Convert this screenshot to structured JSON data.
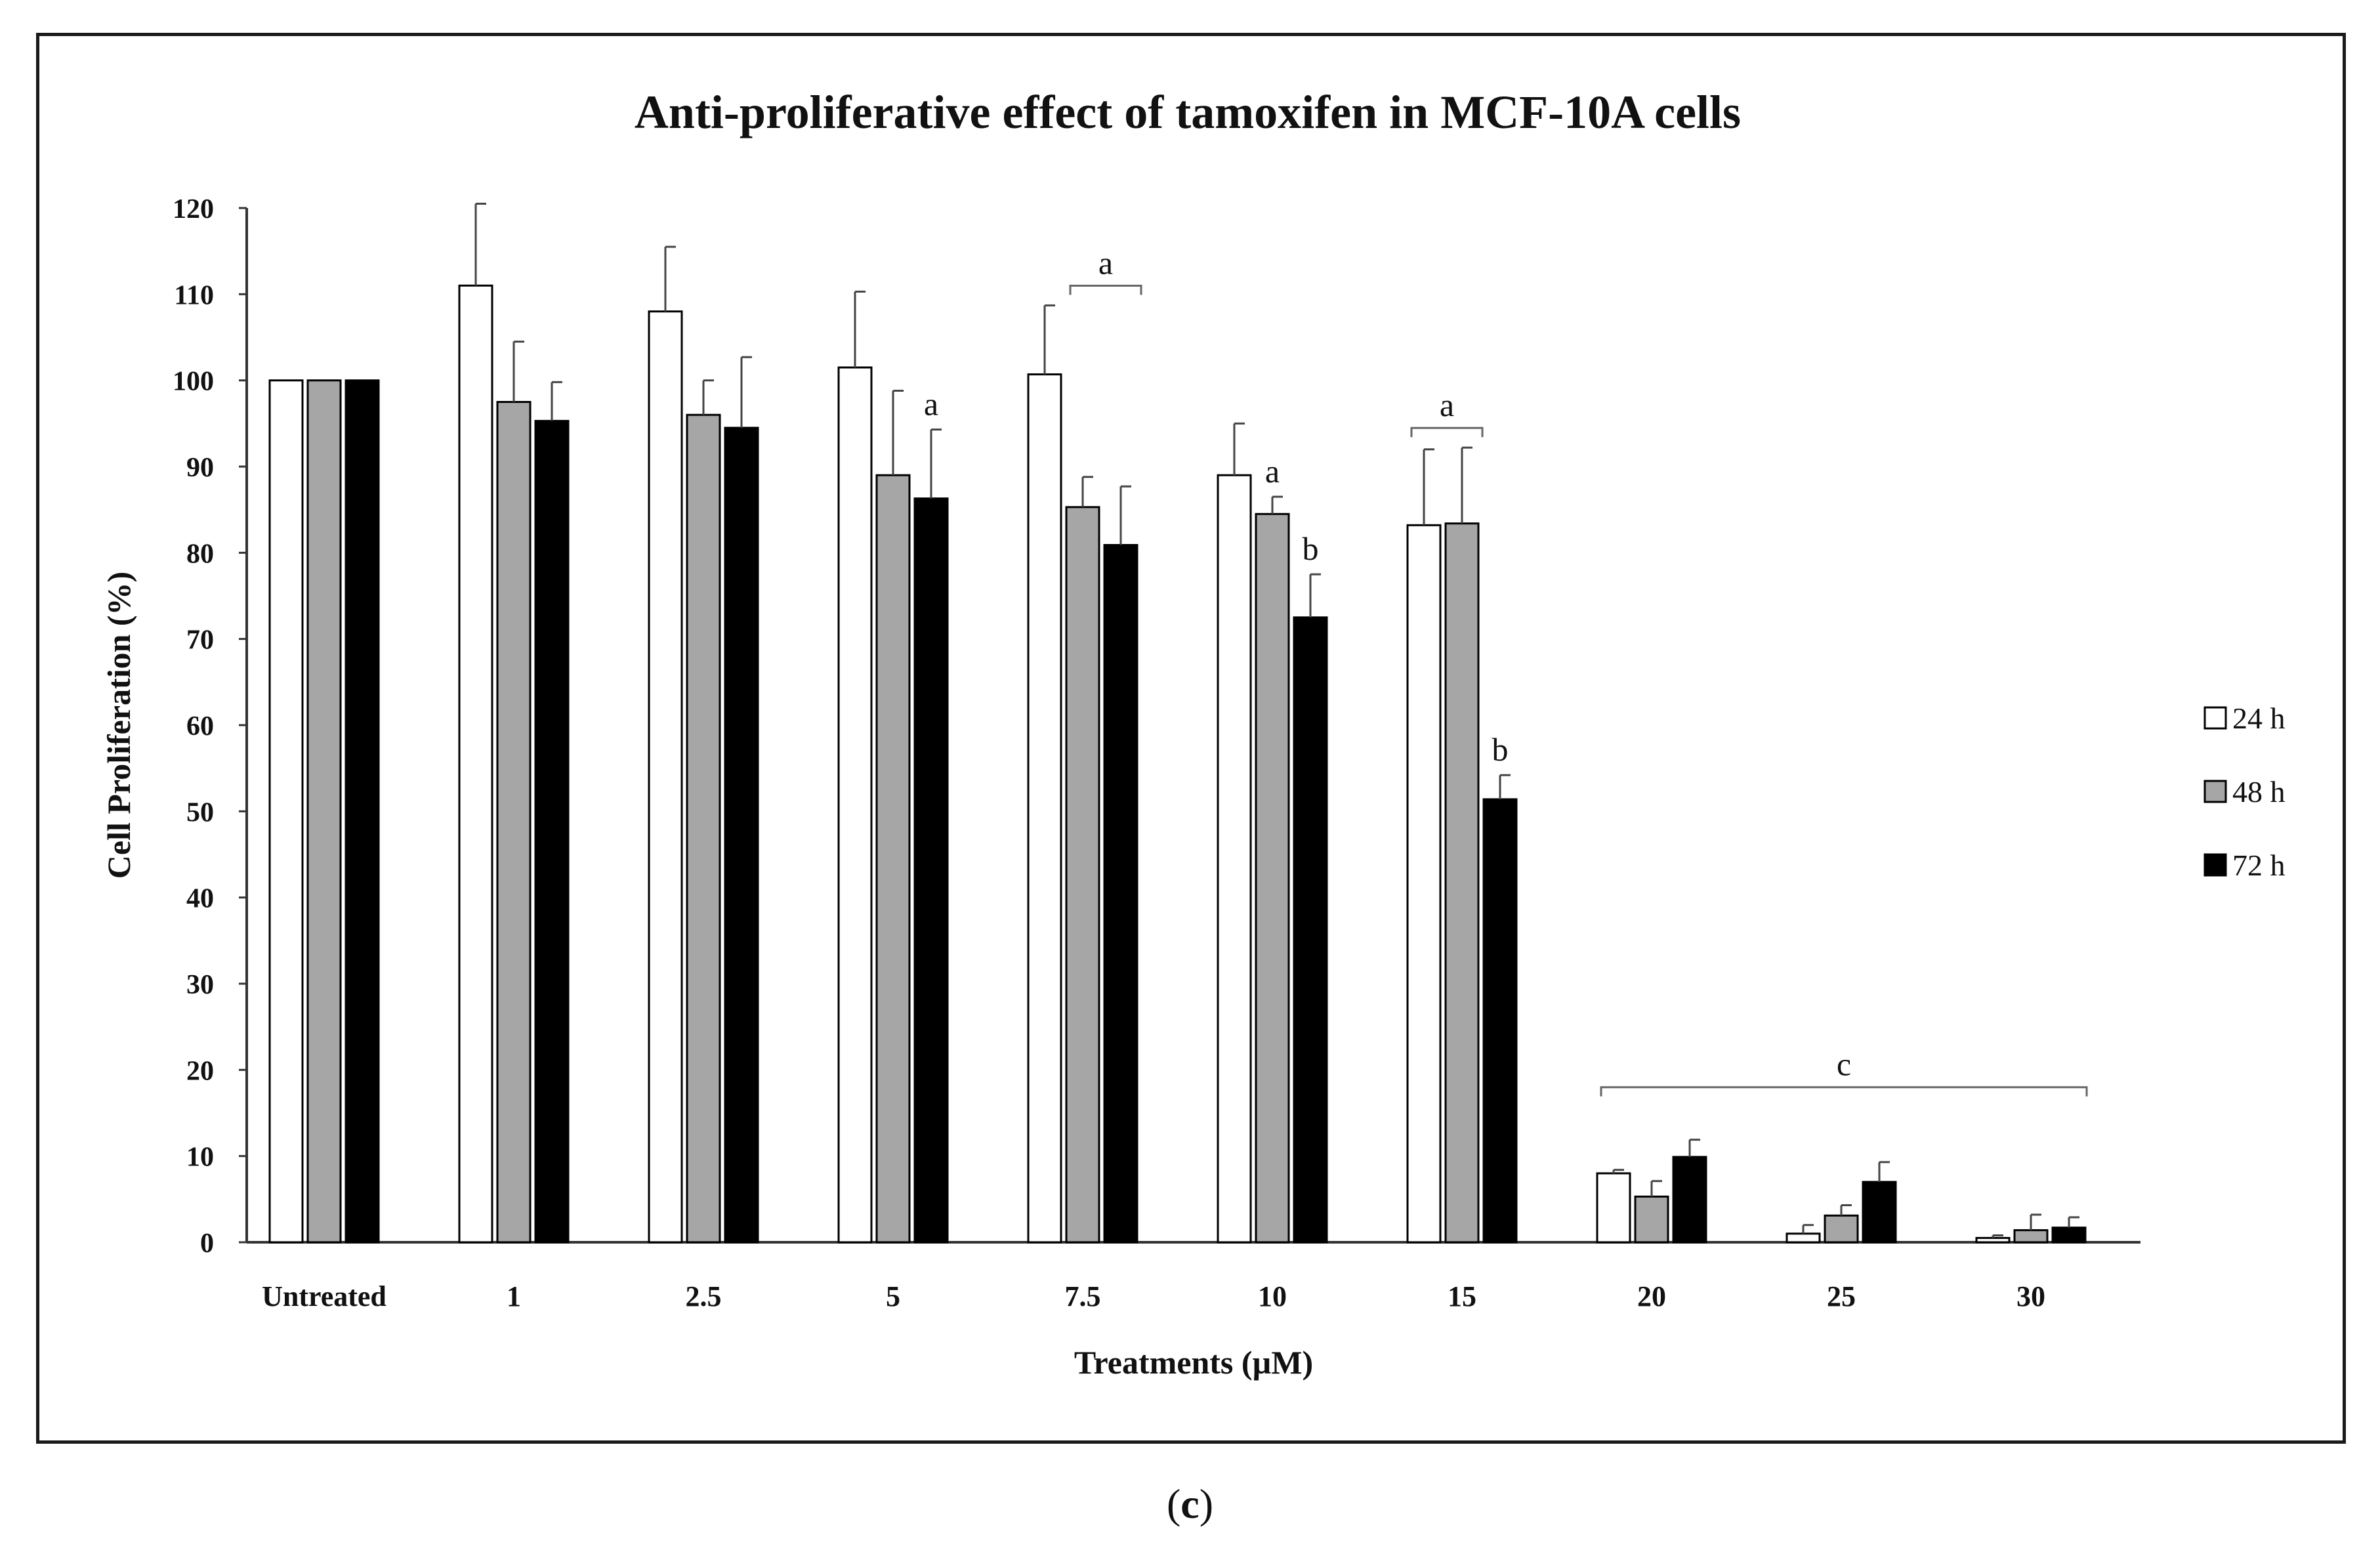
{
  "figure": {
    "panel_label_open": "(",
    "panel_label_letter": "c",
    "panel_label_close": ")"
  },
  "chart_data": {
    "type": "bar",
    "title": "Anti-proliferative effect of tamoxifen in MCF-10A cells",
    "xlabel": "Treatments (µM)",
    "ylabel": "Cell Proliferation (%)",
    "ylim": [
      0,
      120
    ],
    "yticks": [
      0,
      10,
      20,
      30,
      40,
      50,
      60,
      70,
      80,
      90,
      100,
      110,
      120
    ],
    "grid": false,
    "legend_position": "right",
    "categories": [
      "Untreated",
      "1",
      "2.5",
      "5",
      "7.5",
      "10",
      "15",
      "20",
      "25",
      "30"
    ],
    "series": [
      {
        "name": "24 h",
        "color": "#ffffff",
        "values": [
          100,
          111,
          108,
          101.5,
          100.7,
          89,
          83.2,
          8,
          1,
          0.5
        ],
        "errors": [
          0,
          9.5,
          7.5,
          8.8,
          8,
          6,
          8.8,
          0.4,
          1,
          0.3
        ]
      },
      {
        "name": "48 h",
        "color": "#a6a6a6",
        "values": [
          100,
          97.5,
          96,
          89,
          85.3,
          84.5,
          83.4,
          5.3,
          3.1,
          1.4
        ],
        "errors": [
          0,
          7,
          4,
          9.8,
          3.5,
          2,
          8.8,
          1.8,
          1.2,
          1.8
        ]
      },
      {
        "name": "72 h",
        "color": "#000000",
        "values": [
          100,
          95.3,
          94.5,
          86.3,
          80.9,
          72.5,
          51.4,
          9.9,
          7,
          1.7
        ],
        "errors": [
          0,
          4.5,
          8.2,
          8,
          6.8,
          5,
          2.8,
          2,
          2.3,
          1.2
        ]
      }
    ],
    "annotations": [
      {
        "text": "a",
        "category": "5",
        "series": "72 h"
      },
      {
        "text": "a",
        "category": "7.5",
        "series": [
          "48 h",
          "72 h"
        ]
      },
      {
        "text": "a",
        "category": "10",
        "series": "48 h"
      },
      {
        "text": "b",
        "category": "10",
        "series": "72 h"
      },
      {
        "text": "a",
        "category": "15",
        "series": [
          "24 h",
          "48 h"
        ]
      },
      {
        "text": "b",
        "category": "15",
        "series": "72 h"
      },
      {
        "text": "c",
        "category": [
          "20",
          "30"
        ],
        "series": [
          "24 h",
          "72 h"
        ]
      }
    ]
  }
}
